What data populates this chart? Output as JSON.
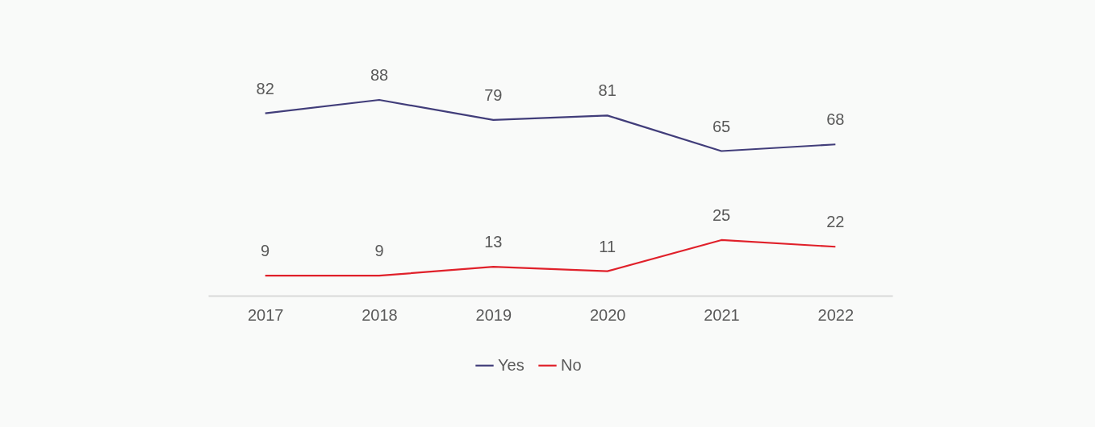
{
  "chart_data": {
    "type": "line",
    "categories": [
      "2017",
      "2018",
      "2019",
      "2020",
      "2021",
      "2022"
    ],
    "series": [
      {
        "name": "Yes",
        "color": "#413d7a",
        "values": [
          82,
          88,
          79,
          81,
          65,
          68
        ]
      },
      {
        "name": "No",
        "color": "#e0202a",
        "values": [
          9,
          9,
          13,
          11,
          25,
          22
        ]
      }
    ],
    "tick_labels": "x",
    "data_labels": true,
    "legend": "bottom",
    "grid": false,
    "marker": "none",
    "line_style": "solid"
  }
}
